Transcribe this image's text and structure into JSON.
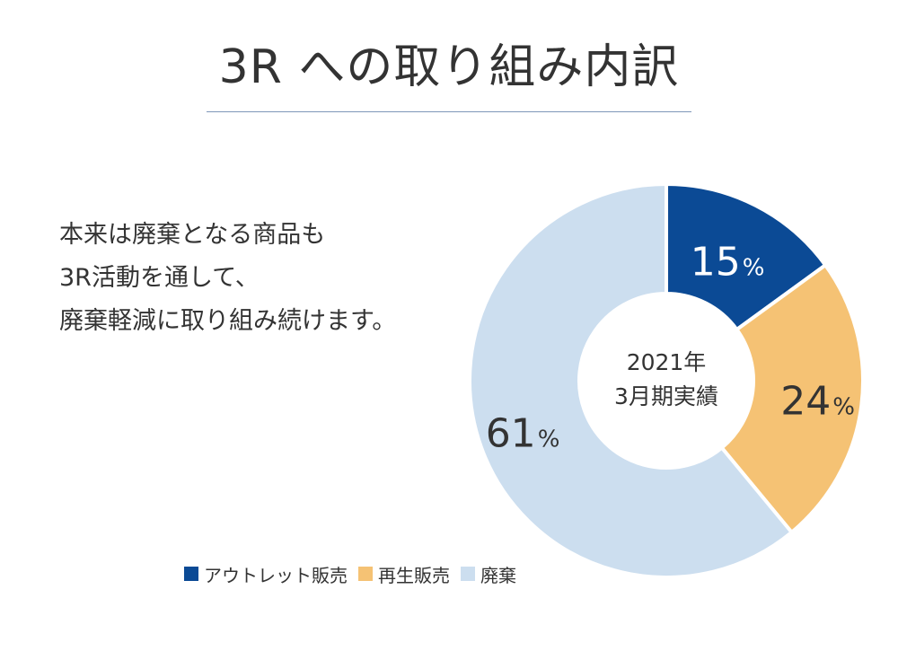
{
  "page": {
    "title": "3R への取り組み内訳",
    "description": [
      "本来は廃棄となる商品も",
      "3R活動を通して、",
      "廃棄軽減に取り組み続けます。"
    ],
    "center_label": [
      "2021年",
      "3月期実績"
    ]
  },
  "chart_data": {
    "type": "pie",
    "style": "donut",
    "start_angle": "12 o'clock, clockwise",
    "categories": [
      "アウトレット販売",
      "再生販売",
      "廃棄"
    ],
    "values": [
      15,
      24,
      61
    ],
    "unit": "%",
    "colors": [
      "#0b4a95",
      "#f5c274",
      "#ccdeef"
    ],
    "label_colors": [
      "#ffffff",
      "#333333",
      "#333333"
    ],
    "legend": {
      "placement": "bottom",
      "entries": [
        "アウトレット販売",
        "再生販売",
        "廃棄"
      ]
    }
  }
}
